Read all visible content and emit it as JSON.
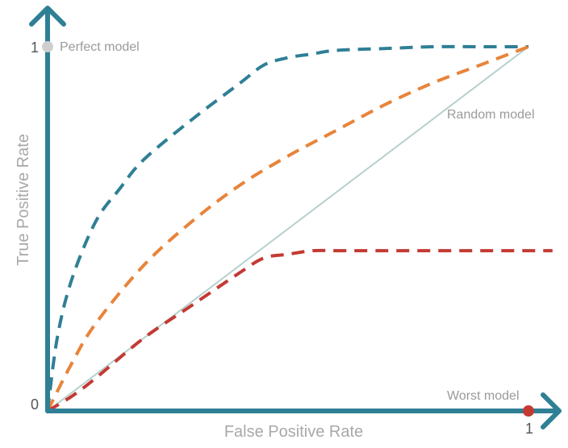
{
  "chart_data": {
    "type": "line",
    "xlabel": "False Positive Rate",
    "ylabel": "True Positive Rate",
    "xlim": [
      0,
      1
    ],
    "ylim": [
      0,
      1
    ],
    "x_ticks": [
      {
        "value": 0,
        "label": "0"
      },
      {
        "value": 1,
        "label": "1"
      }
    ],
    "y_ticks": [
      {
        "value": 1,
        "label": "1"
      }
    ],
    "grid": false,
    "legend": "none",
    "axis_color": "#2f7f95",
    "series": [
      {
        "color": "#2f7f95",
        "style": "dashed",
        "x": [
          0,
          0.02,
          0.05,
          0.1,
          0.15,
          0.2,
          0.3,
          0.4,
          0.45,
          0.5,
          0.55,
          0.6,
          0.7,
          0.8,
          0.9,
          1.0
        ],
        "y": [
          0,
          0.2,
          0.36,
          0.52,
          0.61,
          0.69,
          0.8,
          0.9,
          0.95,
          0.97,
          0.98,
          0.99,
          0.995,
          1.0,
          1.0,
          1.0
        ]
      },
      {
        "color": "#e8843a",
        "style": "dashed",
        "x": [
          0,
          0.05,
          0.1,
          0.2,
          0.3,
          0.4,
          0.5,
          0.6,
          0.7,
          0.8,
          0.9,
          1.0
        ],
        "y": [
          0,
          0.13,
          0.24,
          0.4,
          0.52,
          0.62,
          0.7,
          0.77,
          0.84,
          0.9,
          0.95,
          1.0
        ]
      },
      {
        "color": "#c33a33",
        "style": "dashed",
        "x": [
          0,
          0.05,
          0.1,
          0.2,
          0.3,
          0.4,
          0.45,
          0.5,
          0.55,
          0.6,
          0.7,
          0.8,
          0.9,
          1.0,
          1.05
        ],
        "y": [
          0,
          0.04,
          0.09,
          0.2,
          0.29,
          0.38,
          0.42,
          0.43,
          0.44,
          0.44,
          0.44,
          0.44,
          0.44,
          0.44,
          0.44
        ]
      },
      {
        "name": "Random model",
        "color": "#b5d0cd",
        "style": "solid",
        "x": [
          0,
          1
        ],
        "y": [
          0,
          1
        ]
      }
    ],
    "annotations": [
      {
        "text": "Perfect model",
        "x": 0,
        "y": 1,
        "marker_color": "#cfcfcf"
      },
      {
        "text": "Random model",
        "x": 0.84,
        "y": 0.82
      },
      {
        "text": "Worst model",
        "x": 1,
        "y": 0,
        "marker_color": "#c33a33"
      }
    ]
  }
}
